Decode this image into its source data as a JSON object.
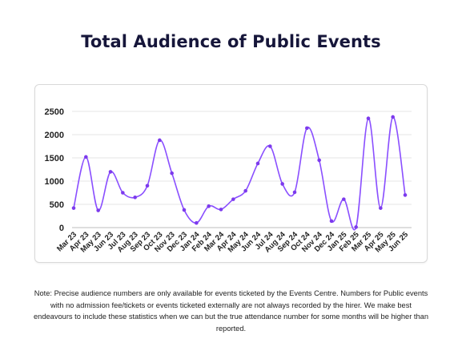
{
  "title": "Total Audience of Public Events",
  "note": "Note: Precise audience numbers are only available for events ticketed by the Events Centre. Numbers for Public events with no admission fee/tickets  or events ticketed externally are not always recorded by the hirer.  We make best endeavours to include these statistics when we can but the true attendance number for some months will be higher than reported.",
  "colors": {
    "line": "#8a4fff",
    "marker": "#7c3aed",
    "grid": "#e6e6e6",
    "text": "#222222"
  },
  "chart_data": {
    "type": "line",
    "title": "Total Audience of Public Events",
    "xlabel": "",
    "ylabel": "",
    "ylim": [
      0,
      2500
    ],
    "yticks": [
      0,
      500,
      1000,
      1500,
      2000,
      2500
    ],
    "grid": true,
    "smooth": true,
    "categories": [
      "Mar 23",
      "Apr 23",
      "May 23",
      "Jun 23",
      "Jul 23",
      "Aug 23",
      "Sep 23",
      "Oct 23",
      "Nov 23",
      "Dec 23",
      "Jan 24",
      "Feb 24",
      "Mar 24",
      "Apr 24",
      "May 24",
      "Jun 24",
      "Jul 24",
      "Aug 24",
      "Sep 24",
      "Oct 24",
      "Nov 24",
      "Dec 24",
      "Jan 25",
      "Feb 25",
      "Mar 25",
      "Apr 25",
      "May 25",
      "Jun 25"
    ],
    "series": [
      {
        "values": [
          420,
          1520,
          370,
          1200,
          750,
          650,
          900,
          1880,
          1170,
          380,
          100,
          460,
          390,
          610,
          790,
          1380,
          1750,
          940,
          760,
          2140,
          1450,
          140,
          610,
          10,
          2350,
          420,
          2380,
          700
        ]
      }
    ]
  }
}
